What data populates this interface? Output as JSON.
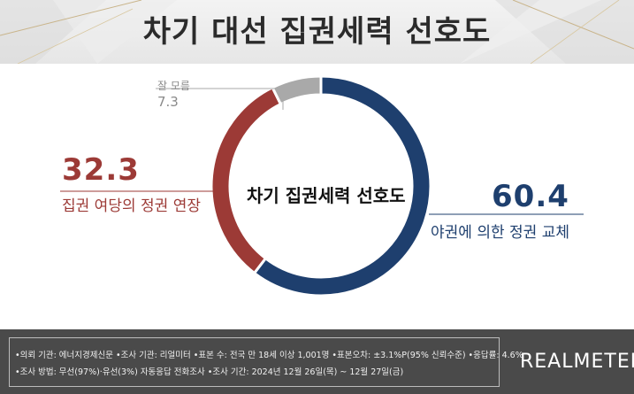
{
  "title": "차기 대선 집권세력 선호도",
  "chart_data": {
    "type": "pie",
    "center_label": "차기 집권세력 선호도",
    "series": [
      {
        "name": "야권에 의한 정권 교체",
        "value": 60.4,
        "value_label": "60.4",
        "color": "#1e3f6e"
      },
      {
        "name": "집권 여당의 정권 연장",
        "value": 32.3,
        "value_label": "32.3",
        "color": "#9c3a36"
      },
      {
        "name": "잘 모름",
        "value": 7.3,
        "value_label": "7.3",
        "color": "#a9a9a9"
      }
    ]
  },
  "footer": {
    "line1": "•의뢰 기관: 에너지경제신문  •조사 기관: 리얼미터 •표본 수: 전국 만 18세 이상 1,001명 •표본오차: ±3.1%P(95% 신뢰수준) •응답률: 4.6%",
    "line2": "•조사 방법: 무선(97%)·유선(3%) 자동응답 전화조사 •조사 기간: 2024년 12월 26일(목) ~ 12월 27일(금)",
    "brand": "REALMETER"
  }
}
